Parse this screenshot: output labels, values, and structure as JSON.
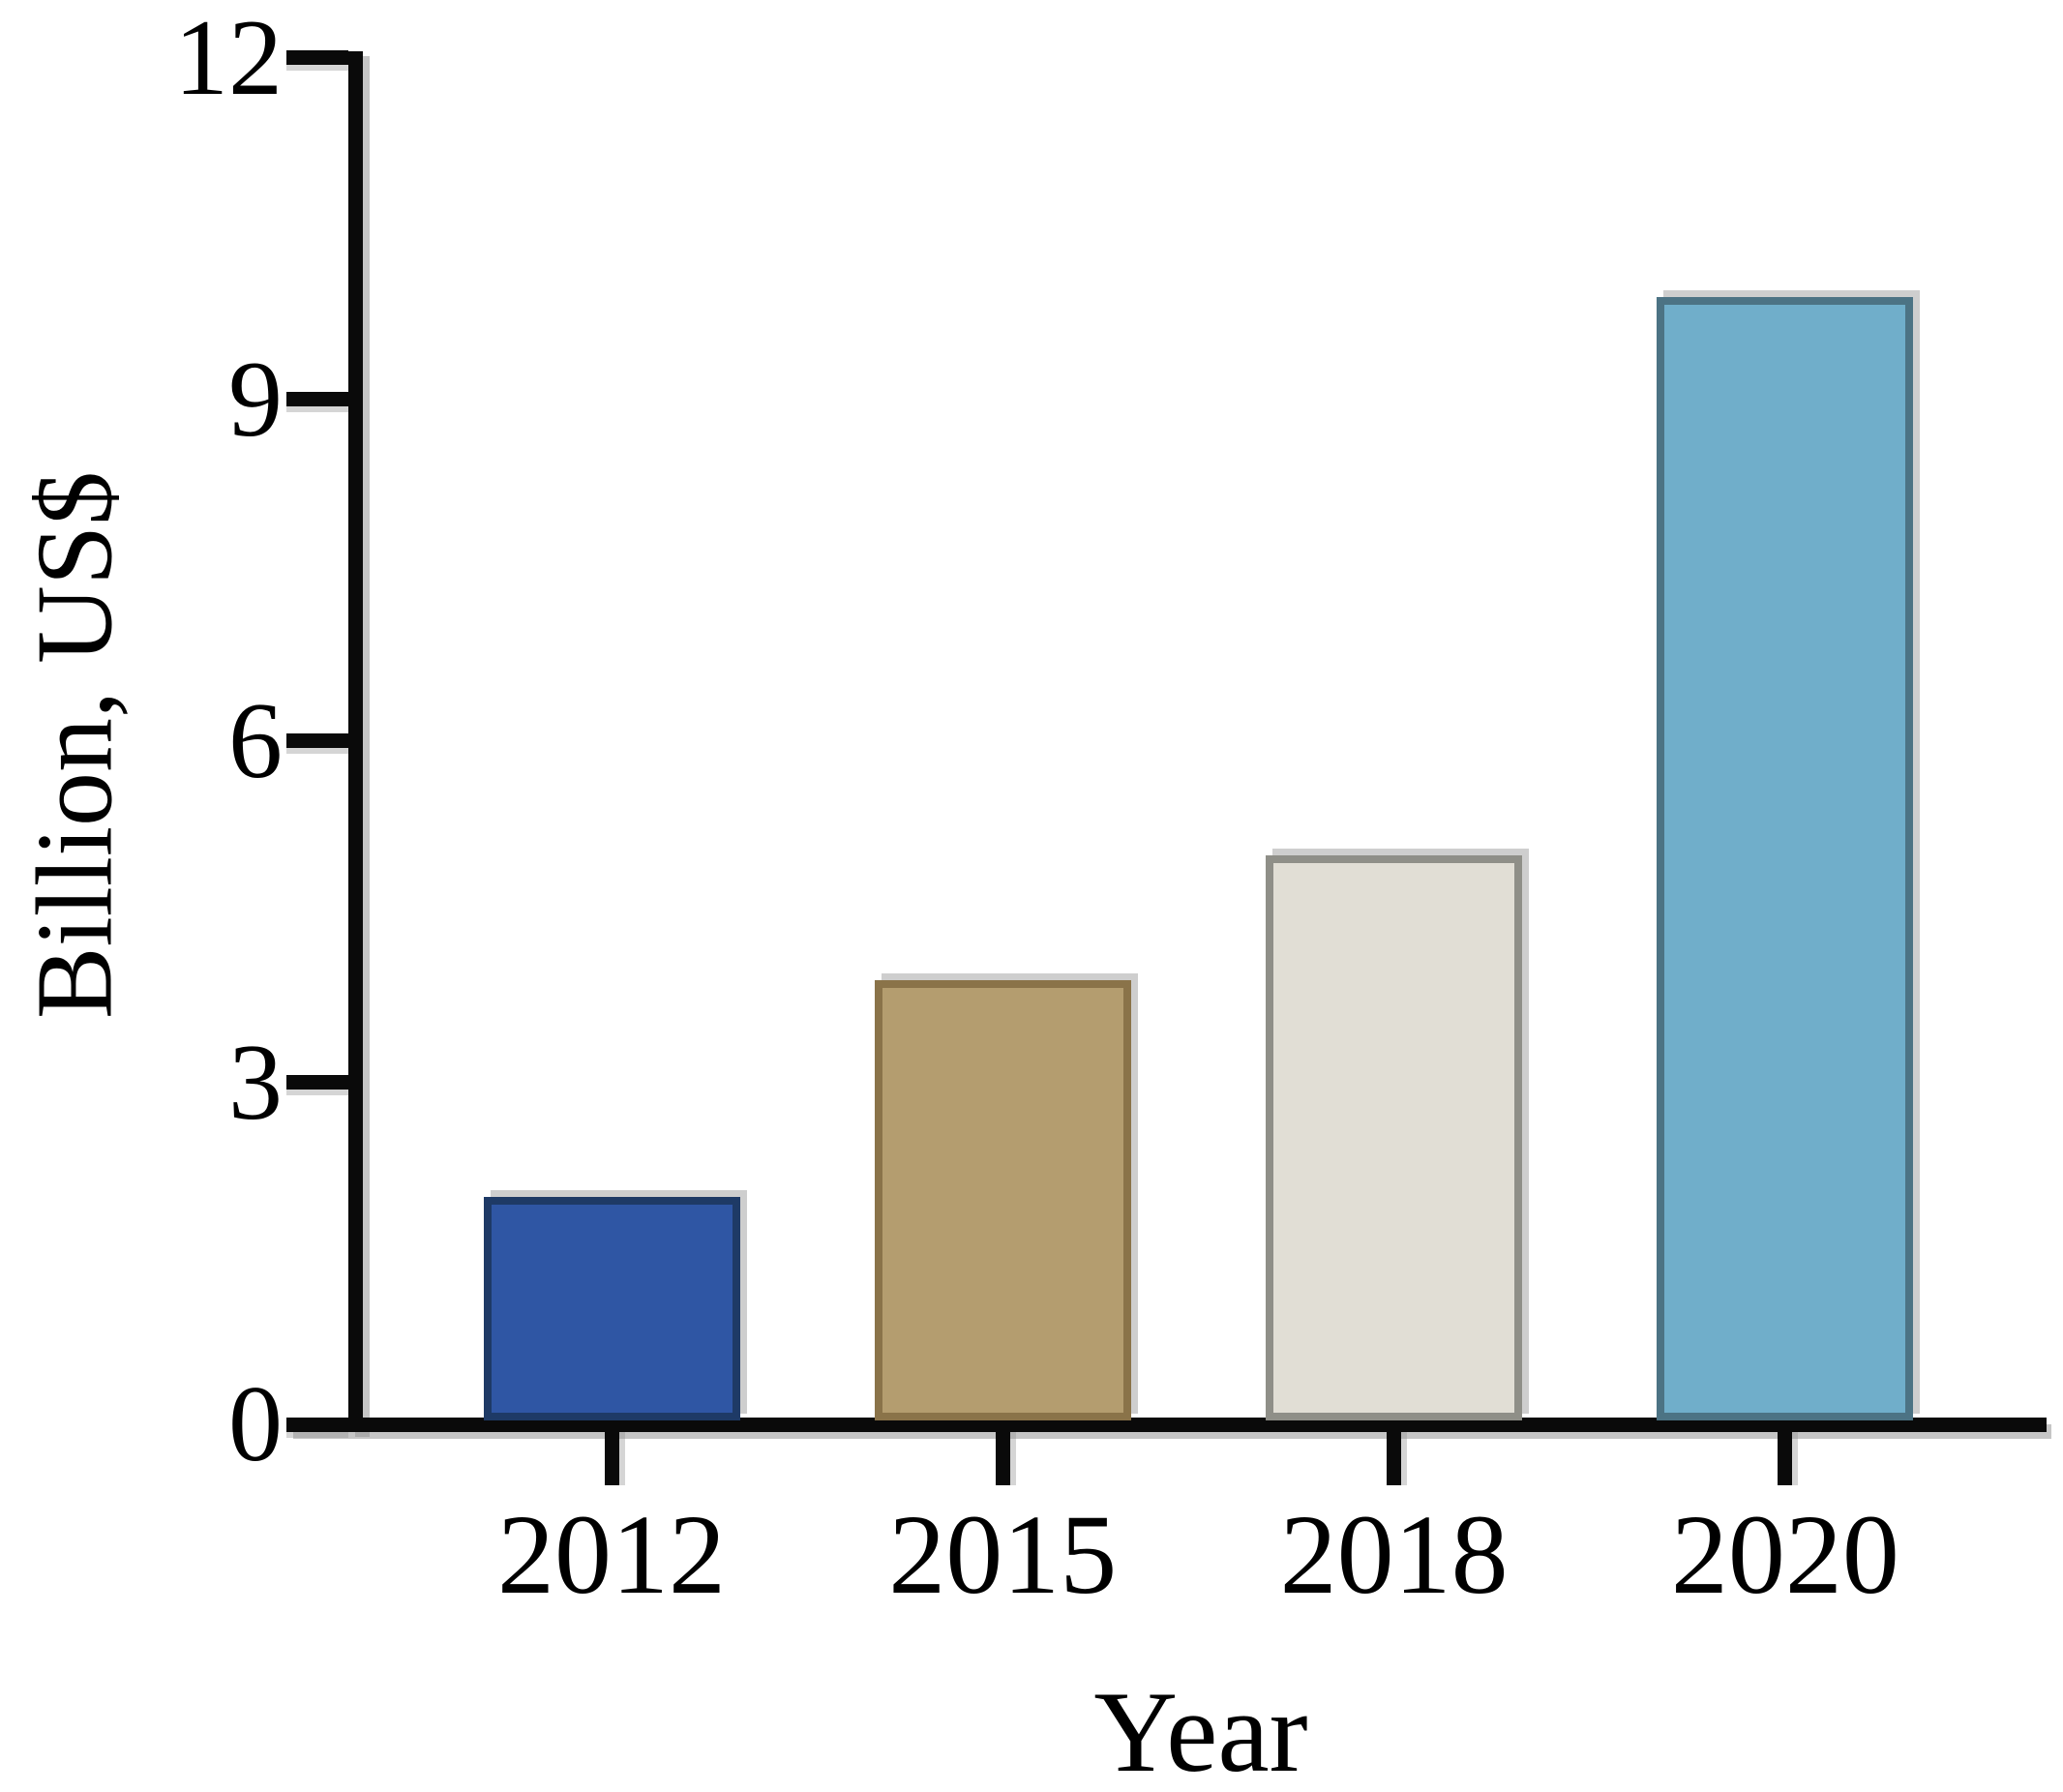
{
  "chart_data": {
    "type": "bar",
    "title": "",
    "categories": [
      "2012",
      "2015",
      "2018",
      "2020"
    ],
    "values": [
      2.0,
      3.9,
      5.0,
      9.9
    ],
    "xlabel": "Year",
    "ylabel": "Billion, US$",
    "ylim": [
      0,
      12
    ],
    "yticks": [
      0,
      3,
      6,
      9,
      12
    ],
    "grid": false,
    "legend": "none",
    "bar_fill_colors": [
      "#2F56A4",
      "#B49D6F",
      "#E1DED5",
      "#70AECA"
    ],
    "bar_edge_colors": [
      "#1E3A66",
      "#8A7349",
      "#8F8F88",
      "#4C7384"
    ],
    "axis_color": "#0a0a0a",
    "text_color": "#000000",
    "background_color": "#ffffff"
  }
}
